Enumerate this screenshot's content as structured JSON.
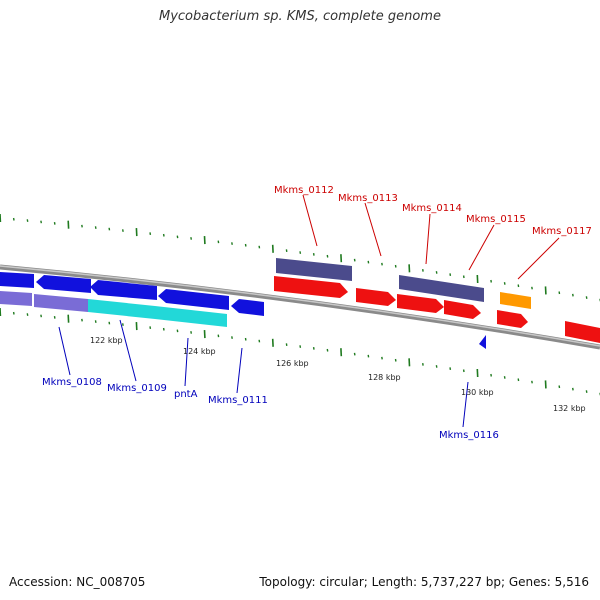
{
  "title": "Mycobacterium sp. KMS, complete genome",
  "footer": {
    "accession": "Accession: NC_008705",
    "stats": "Topology: circular; Length: 5,737,227 bp; Genes: 5,516"
  },
  "colors": {
    "backbone": "#8a8a8a",
    "tick": "#1f7a1f",
    "forward_gene": "#ee1111",
    "reverse_gene": "#1111dd",
    "forward_cds": "#4b4b8c",
    "reverse_cds": "#7a6cd6",
    "rna_forward": "#ff9900",
    "rna_reverse": "#22d8d8",
    "forward_label": "#cc0000",
    "reverse_label": "#0000bb"
  },
  "position_labels": [
    "122 kbp",
    "124 kbp",
    "126 kbp",
    "128 kbp",
    "130 kbp",
    "132 kbp"
  ],
  "gene_labels": {
    "forward": [
      "Mkms_0112",
      "Mkms_0113",
      "Mkms_0114",
      "Mkms_0115",
      "Mkms_0117"
    ],
    "reverse": [
      "Mkms_0108",
      "Mkms_0109",
      "pntA",
      "Mkms_0111",
      "Mkms_0116"
    ]
  }
}
